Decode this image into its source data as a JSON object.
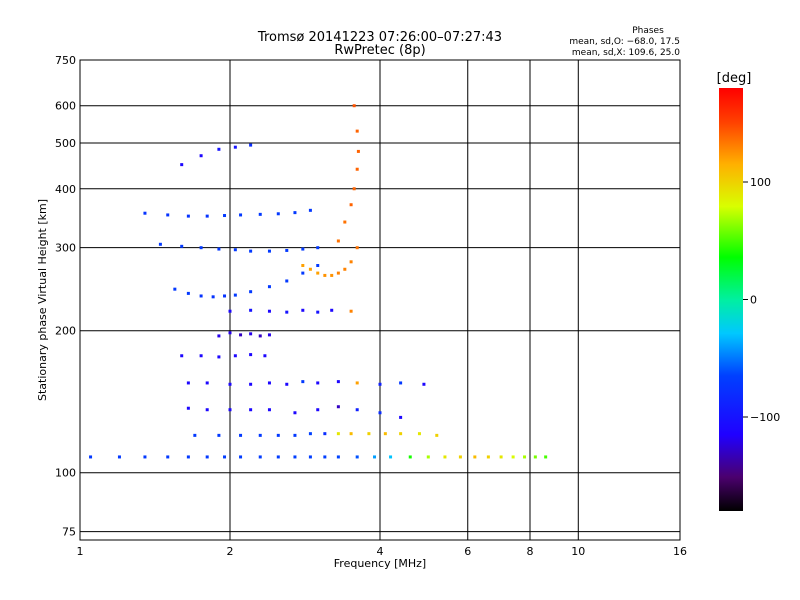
{
  "chart_data": {
    "type": "scatter",
    "title": "Tromsø 20141223 07:26:00–07:27:43",
    "subtitle": "RwPretec (8p)",
    "xlabel": "Frequency [MHz]",
    "ylabel": "Stationary phase Virtual Height [km]",
    "x_scale": "log",
    "y_scale": "log",
    "xlim": [
      1,
      16
    ],
    "ylim": [
      72,
      750
    ],
    "x_ticks": [
      1,
      2,
      4,
      6,
      8,
      10,
      16
    ],
    "x_tick_labels": [
      "1",
      "2",
      "4",
      "6",
      "8",
      "10",
      "16"
    ],
    "y_ticks": [
      75,
      100,
      200,
      300,
      400,
      500,
      600,
      750
    ],
    "y_tick_labels": [
      "75",
      "100",
      "200",
      "300",
      "400",
      "500",
      "600",
      "750"
    ],
    "grid": true,
    "legend": {
      "title": "Phases",
      "lines": [
        "mean, sd,O: −68.0, 17.5",
        "mean, sd,X: 109.6, 25.0"
      ],
      "placement": "top-right"
    },
    "colorbar": {
      "label": "[deg]",
      "range": [
        -180,
        180
      ],
      "ticks": [
        100,
        0,
        -100
      ],
      "tick_labels": [
        "100",
        "0",
        "−100"
      ],
      "colormap": "rainbow"
    },
    "series": [
      {
        "x": [
          1.05,
          1.2,
          1.35,
          1.5,
          1.65,
          1.8,
          1.95,
          2.1,
          2.3,
          2.5,
          2.7,
          2.9,
          3.1,
          3.3,
          3.6,
          3.9,
          4.2,
          4.6,
          5.0,
          5.4,
          5.8,
          6.2,
          6.6,
          7.0,
          7.4,
          7.8,
          8.2,
          8.6
        ],
        "y": [
          108,
          108,
          108,
          108,
          108,
          108,
          108,
          108,
          108,
          108,
          108,
          108,
          108,
          108,
          108,
          108,
          108,
          108,
          108,
          108,
          108,
          108,
          108,
          108,
          108,
          108,
          108,
          108
        ],
        "phase": [
          -70,
          -70,
          -70,
          -70,
          -70,
          -70,
          -68,
          -68,
          -68,
          -68,
          -66,
          -66,
          -66,
          -64,
          -60,
          -40,
          -30,
          40,
          70,
          90,
          100,
          110,
          100,
          90,
          80,
          70,
          60,
          50
        ]
      },
      {
        "x": [
          1.7,
          1.9,
          2.1,
          2.3,
          2.5,
          2.7,
          2.9,
          3.1,
          3.3,
          3.5,
          3.8,
          4.1,
          4.4,
          4.8,
          5.2
        ],
        "y": [
          120,
          120,
          120,
          120,
          120,
          120,
          121,
          121,
          121,
          121,
          121,
          121,
          121,
          121,
          120
        ],
        "phase": [
          -70,
          -70,
          -70,
          -70,
          -70,
          -70,
          -65,
          -80,
          90,
          110,
          100,
          110,
          100,
          90,
          100
        ]
      },
      {
        "x": [
          1.65,
          1.8,
          2.0,
          2.2,
          2.4,
          2.7,
          3.0,
          3.3,
          3.6,
          4.0,
          4.4
        ],
        "y": [
          137,
          136,
          136,
          136,
          136,
          134,
          136,
          138,
          136,
          134,
          131
        ],
        "phase": [
          -110,
          -110,
          -110,
          -110,
          -110,
          -110,
          -110,
          -130,
          -90,
          -80,
          -110
        ]
      },
      {
        "x": [
          1.65,
          1.8,
          2.0,
          2.2,
          2.4,
          2.6,
          2.8,
          3.0,
          3.3,
          3.6,
          4.0,
          4.4,
          4.9
        ],
        "y": [
          155,
          155,
          154,
          154,
          155,
          154,
          156,
          155,
          156,
          155,
          154,
          155,
          154
        ],
        "phase": [
          -110,
          -110,
          -110,
          -110,
          -110,
          -110,
          -70,
          -110,
          -110,
          120,
          -90,
          -70,
          -110
        ]
      },
      {
        "x": [
          1.6,
          1.75,
          1.9,
          2.05,
          2.2,
          2.35
        ],
        "y": [
          177,
          177,
          176,
          177,
          178,
          177
        ],
        "phase": [
          -110,
          -110,
          -110,
          -110,
          -110,
          -110
        ]
      },
      {
        "x": [
          1.9,
          2.0,
          2.1,
          2.2,
          2.3,
          2.4
        ],
        "y": [
          195,
          198,
          196,
          197,
          195,
          196
        ],
        "phase": [
          -120,
          -120,
          -130,
          -120,
          -130,
          -120
        ]
      },
      {
        "x": [
          2.0,
          2.2,
          2.4,
          2.6,
          2.8,
          3.0,
          3.2,
          3.5
        ],
        "y": [
          220,
          221,
          220,
          219,
          221,
          219,
          221,
          220
        ],
        "phase": [
          -110,
          -100,
          -110,
          -100,
          -110,
          -100,
          -110,
          130
        ]
      },
      {
        "x": [
          1.55,
          1.65,
          1.75,
          1.85,
          1.95,
          2.05,
          2.2,
          2.4,
          2.6,
          2.8,
          3.0
        ],
        "y": [
          245,
          240,
          237,
          236,
          237,
          238,
          242,
          248,
          255,
          265,
          275
        ],
        "phase": [
          -70,
          -70,
          -75,
          -75,
          -75,
          -70,
          -70,
          -70,
          -70,
          -70,
          -70
        ]
      },
      {
        "x": [
          1.45,
          1.6,
          1.75,
          1.9,
          2.05,
          2.2,
          2.4,
          2.6,
          2.8,
          3.0
        ],
        "y": [
          305,
          302,
          300,
          298,
          297,
          295,
          295,
          296,
          298,
          300
        ],
        "phase": [
          -70,
          -70,
          -70,
          -70,
          -70,
          -70,
          -70,
          -70,
          -70,
          -70
        ]
      },
      {
        "x": [
          1.35,
          1.5,
          1.65,
          1.8,
          1.95,
          2.1,
          2.3,
          2.5,
          2.7,
          2.9
        ],
        "y": [
          355,
          352,
          350,
          350,
          351,
          352,
          353,
          354,
          356,
          360
        ],
        "phase": [
          -75,
          -75,
          -75,
          -75,
          -70,
          -70,
          -70,
          -70,
          -70,
          -70
        ]
      },
      {
        "x": [
          1.6,
          1.75,
          1.9,
          2.05,
          2.2
        ],
        "y": [
          450,
          470,
          485,
          490,
          495
        ],
        "phase": [
          -110,
          -110,
          -100,
          -100,
          -80
        ]
      },
      {
        "x": [
          2.8,
          2.9,
          3.0,
          3.1,
          3.2,
          3.3,
          3.4,
          3.5,
          3.6
        ],
        "y": [
          275,
          270,
          265,
          262,
          262,
          265,
          270,
          280,
          300
        ],
        "phase": [
          120,
          120,
          120,
          125,
          125,
          130,
          130,
          130,
          135
        ]
      },
      {
        "x": [
          3.3,
          3.4,
          3.5,
          3.55,
          3.6,
          3.62,
          3.6,
          3.55
        ],
        "y": [
          310,
          340,
          370,
          400,
          440,
          480,
          530,
          600
        ],
        "phase": [
          135,
          135,
          140,
          140,
          140,
          140,
          140,
          145
        ]
      }
    ],
    "note": "Scatter of ionogram echoes; marker color encodes phase (deg) on rainbow colormap."
  }
}
